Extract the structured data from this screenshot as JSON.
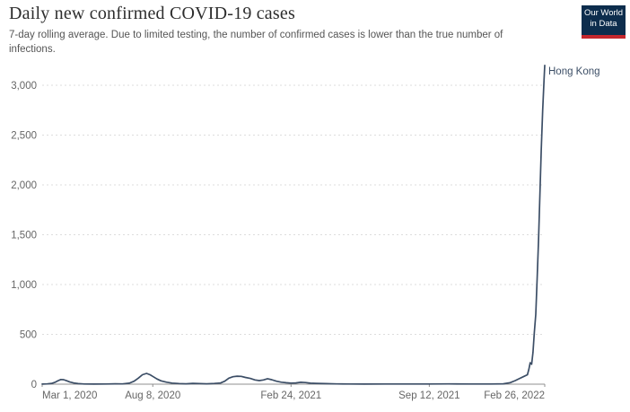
{
  "header": {
    "title": "Daily new confirmed COVID-19 cases",
    "subtitle": "7-day rolling average. Due to limited testing, the number of confirmed cases is lower than the true number of infections.",
    "logo": {
      "line1": "Our World",
      "line2": "in Data",
      "bg_color": "#0d2d4d",
      "accent_color": "#c5272d",
      "text_color": "#ffffff"
    }
  },
  "chart_data": {
    "type": "line",
    "title": "Daily new confirmed COVID-19 cases",
    "subtitle": "7-day rolling average. Due to limited testing, the number of confirmed cases is lower than the true number of infections.",
    "entity_label": "Hong Kong",
    "line_color": "#3c4e66",
    "grid_color": "#dddddd",
    "axis_color": "#8f8f8f",
    "tick_label_color": "#666666",
    "grid": true,
    "legend_position": "end-of-line",
    "x_domain": [
      "2020-03-01",
      "2022-02-26"
    ],
    "ylim": [
      0,
      3200
    ],
    "yticks": [
      0,
      500,
      1000,
      1500,
      2000,
      2500,
      3000
    ],
    "ytick_labels": [
      "0",
      "500",
      "1,000",
      "1,500",
      "2,000",
      "2,500",
      "3,000"
    ],
    "x_ticks": [
      {
        "date": "2020-03-01",
        "label": "Mar 1, 2020",
        "align": "start"
      },
      {
        "date": "2020-08-08",
        "label": "Aug 8, 2020",
        "align": "middle"
      },
      {
        "date": "2021-02-24",
        "label": "Feb 24, 2021",
        "align": "middle"
      },
      {
        "date": "2021-09-12",
        "label": "Sep 12, 2021",
        "align": "middle"
      },
      {
        "date": "2022-02-26",
        "label": "Feb 26, 2022",
        "align": "end"
      }
    ],
    "series": [
      {
        "name": "Hong Kong",
        "points": [
          [
            "2020-03-01",
            1
          ],
          [
            "2020-03-08",
            3
          ],
          [
            "2020-03-15",
            8
          ],
          [
            "2020-03-20",
            20
          ],
          [
            "2020-03-24",
            35
          ],
          [
            "2020-03-28",
            47
          ],
          [
            "2020-04-01",
            45
          ],
          [
            "2020-04-05",
            35
          ],
          [
            "2020-04-10",
            22
          ],
          [
            "2020-04-16",
            12
          ],
          [
            "2020-04-22",
            5
          ],
          [
            "2020-05-01",
            2
          ],
          [
            "2020-05-15",
            1
          ],
          [
            "2020-06-01",
            2
          ],
          [
            "2020-06-15",
            4
          ],
          [
            "2020-06-25",
            3
          ],
          [
            "2020-07-05",
            10
          ],
          [
            "2020-07-12",
            30
          ],
          [
            "2020-07-18",
            60
          ],
          [
            "2020-07-24",
            95
          ],
          [
            "2020-07-30",
            108
          ],
          [
            "2020-08-04",
            95
          ],
          [
            "2020-08-08",
            78
          ],
          [
            "2020-08-14",
            52
          ],
          [
            "2020-08-20",
            33
          ],
          [
            "2020-08-28",
            20
          ],
          [
            "2020-09-05",
            11
          ],
          [
            "2020-09-15",
            6
          ],
          [
            "2020-09-25",
            4
          ],
          [
            "2020-10-05",
            8
          ],
          [
            "2020-10-15",
            6
          ],
          [
            "2020-10-25",
            4
          ],
          [
            "2020-11-05",
            7
          ],
          [
            "2020-11-14",
            12
          ],
          [
            "2020-11-20",
            30
          ],
          [
            "2020-11-26",
            60
          ],
          [
            "2020-12-02",
            75
          ],
          [
            "2020-12-08",
            80
          ],
          [
            "2020-12-14",
            78
          ],
          [
            "2020-12-20",
            68
          ],
          [
            "2020-12-27",
            58
          ],
          [
            "2021-01-03",
            42
          ],
          [
            "2021-01-09",
            36
          ],
          [
            "2021-01-15",
            42
          ],
          [
            "2021-01-21",
            55
          ],
          [
            "2021-01-27",
            45
          ],
          [
            "2021-02-03",
            30
          ],
          [
            "2021-02-10",
            20
          ],
          [
            "2021-02-17",
            14
          ],
          [
            "2021-02-24",
            11
          ],
          [
            "2021-03-03",
            13
          ],
          [
            "2021-03-10",
            19
          ],
          [
            "2021-03-17",
            16
          ],
          [
            "2021-03-24",
            10
          ],
          [
            "2021-04-01",
            8
          ],
          [
            "2021-04-15",
            5
          ],
          [
            "2021-05-01",
            3
          ],
          [
            "2021-05-20",
            2
          ],
          [
            "2021-06-10",
            1
          ],
          [
            "2021-07-10",
            2
          ],
          [
            "2021-08-10",
            2
          ],
          [
            "2021-09-10",
            2
          ],
          [
            "2021-10-10",
            3
          ],
          [
            "2021-11-10",
            2
          ],
          [
            "2021-12-10",
            2
          ],
          [
            "2021-12-28",
            4
          ],
          [
            "2022-01-07",
            15
          ],
          [
            "2022-01-14",
            35
          ],
          [
            "2022-01-20",
            55
          ],
          [
            "2022-01-26",
            75
          ],
          [
            "2022-02-01",
            95
          ],
          [
            "2022-02-03",
            150
          ],
          [
            "2022-02-05",
            215
          ],
          [
            "2022-02-07",
            200
          ],
          [
            "2022-02-09",
            320
          ],
          [
            "2022-02-11",
            520
          ],
          [
            "2022-02-13",
            700
          ],
          [
            "2022-02-15",
            1050
          ],
          [
            "2022-02-17",
            1450
          ],
          [
            "2022-02-19",
            1900
          ],
          [
            "2022-02-21",
            2350
          ],
          [
            "2022-02-23",
            2750
          ],
          [
            "2022-02-25",
            3050
          ],
          [
            "2022-02-26",
            3200
          ]
        ]
      }
    ]
  }
}
